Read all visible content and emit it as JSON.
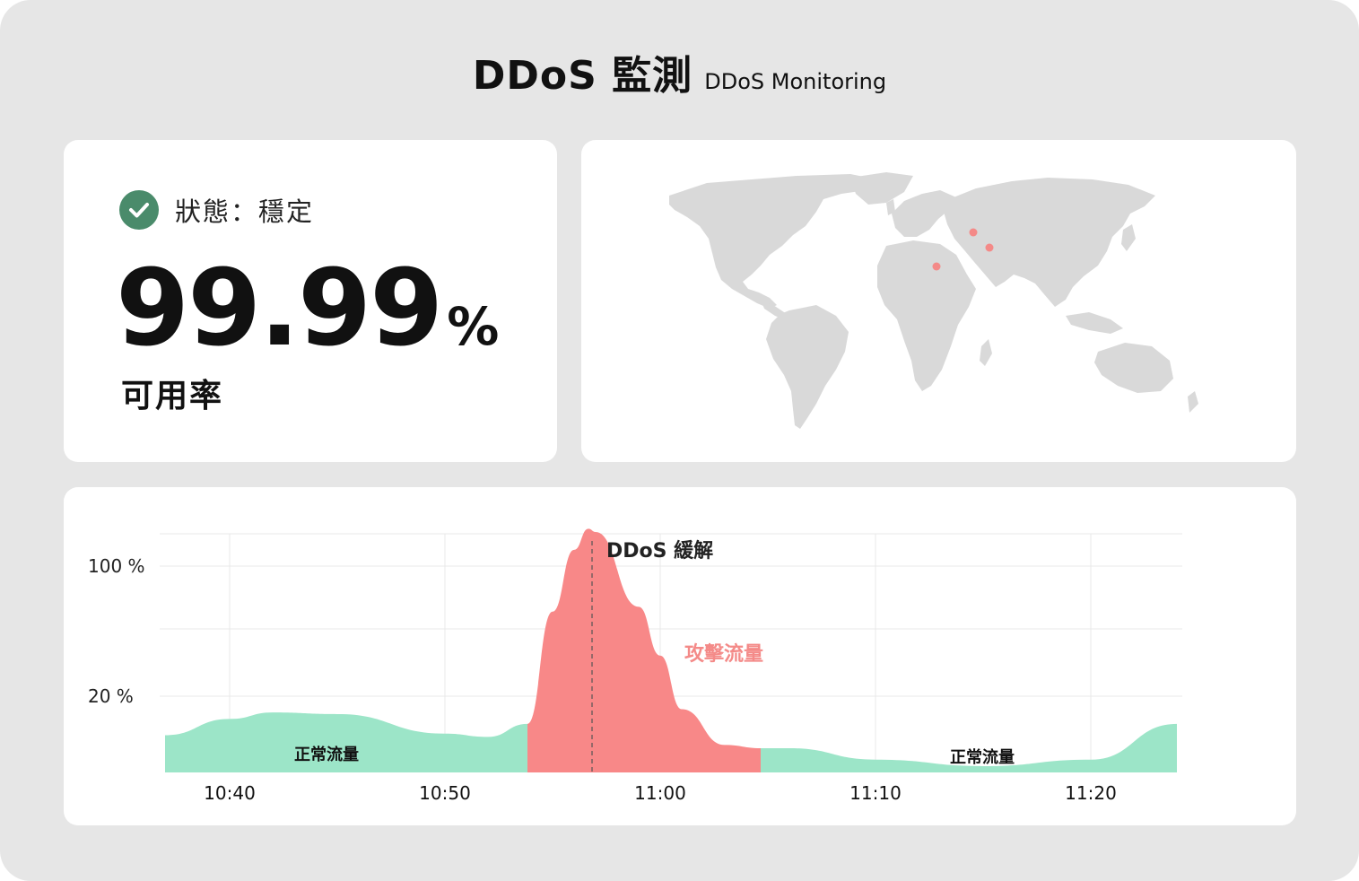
{
  "title": {
    "main": "DDoS 監測",
    "sub": "DDoS Monitoring"
  },
  "status": {
    "label": "狀態：穩定",
    "uptime_value": "99.99",
    "uptime_unit": "%",
    "uptime_label": "可用率",
    "check_icon": "check-circle-icon",
    "check_color": "#4a8b6b"
  },
  "map": {
    "icon": "world-map",
    "land_color": "#d9d9d9",
    "marker_color": "#f48a88"
  },
  "chart_data": {
    "type": "area",
    "x_ticks": [
      "10:40",
      "10:50",
      "11:00",
      "11:10",
      "11:20"
    ],
    "y_ticks": [
      {
        "label": "100 %",
        "value": 100
      },
      {
        "label": "20 %",
        "value": 20
      }
    ],
    "series": [
      {
        "name": "正常流量",
        "color": "#9ce5c8",
        "x": [
          "10:37",
          "10:40",
          "10:42",
          "10:45",
          "10:50",
          "10:52",
          "10:53:50"
        ],
        "values": [
          -4,
          6,
          10,
          9,
          -3,
          -5,
          3
        ]
      },
      {
        "name": "攻擊流量",
        "color": "#f88888",
        "x": [
          "10:53:50",
          "10:55",
          "10:56",
          "10:56:40",
          "10:57",
          "10:59",
          "11:00",
          "11:01",
          "11:03",
          "11:04:40"
        ],
        "values": [
          3,
          72,
          110,
          123,
          121,
          75,
          45,
          12,
          -10,
          -12
        ]
      },
      {
        "name": "正常流量",
        "color": "#9ce5c8",
        "x": [
          "11:04:40",
          "11:06",
          "11:10",
          "11:15",
          "11:20",
          "11:24"
        ],
        "values": [
          -12,
          -12,
          -19,
          -23,
          -19,
          3
        ]
      }
    ],
    "annotations": [
      {
        "text": "DDoS 緩解",
        "x": "10:56:50",
        "type": "vertical-dashed-line"
      },
      {
        "text": "攻擊流量",
        "color": "#f48a88"
      },
      {
        "text": "正常流量"
      },
      {
        "text": "正常流量"
      }
    ],
    "grid": true
  }
}
